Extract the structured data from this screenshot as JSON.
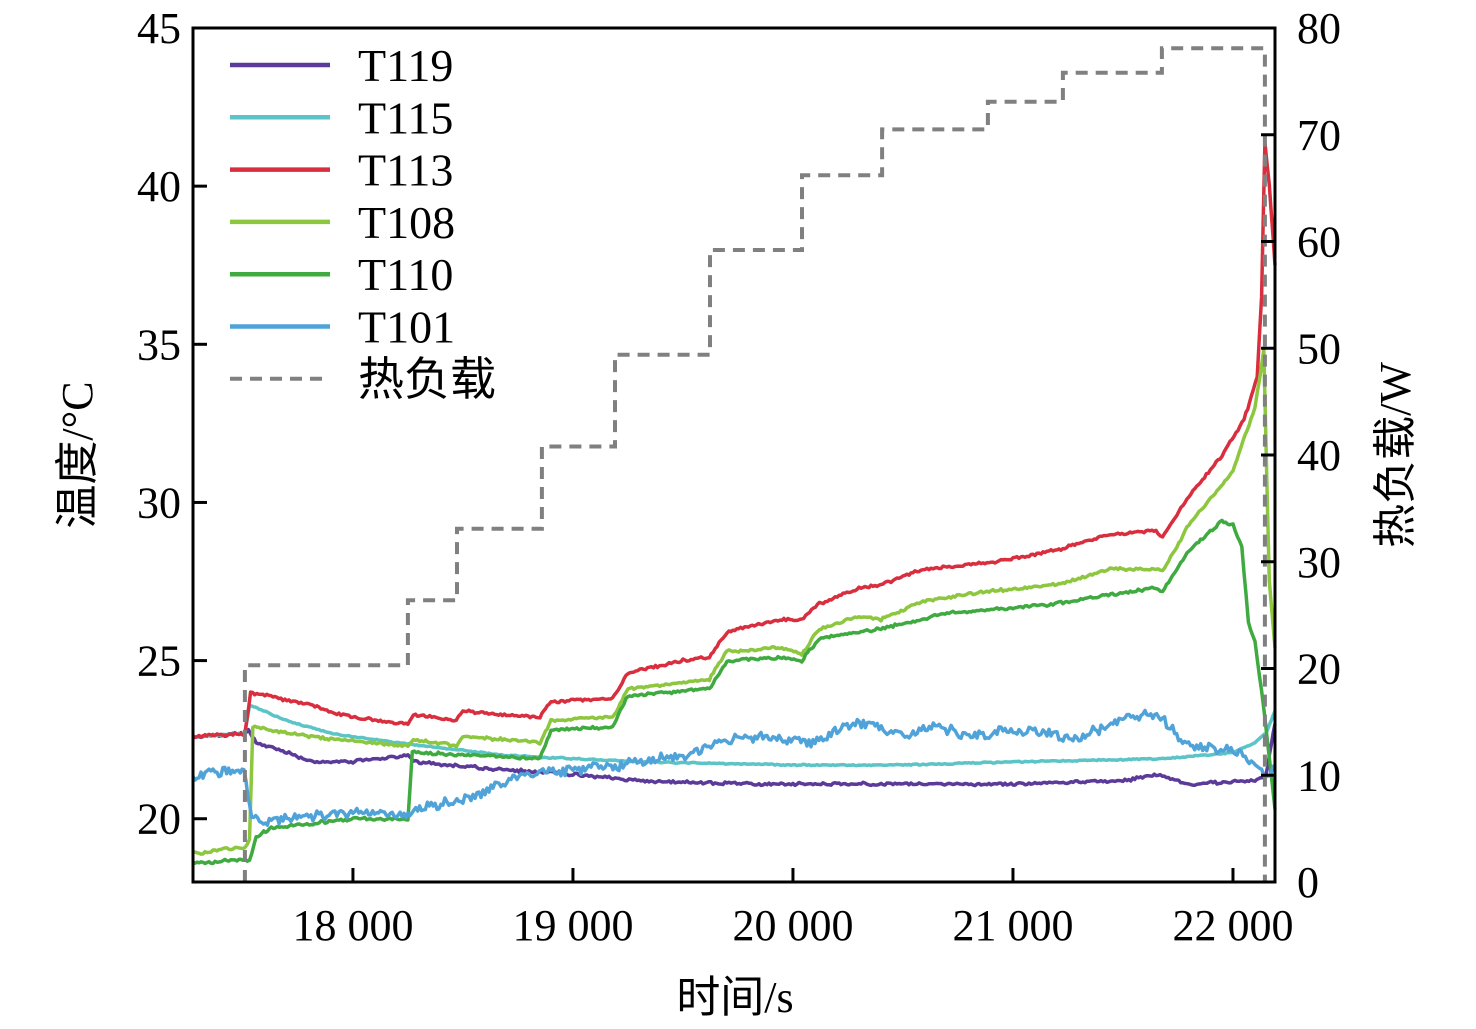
{
  "chart_data": {
    "type": "line",
    "xlabel": "时间/s",
    "ylabel": "温度/°C",
    "y2label": "热负载/W",
    "xlim": [
      17273,
      22191
    ],
    "ylim": [
      18,
      45
    ],
    "y2lim": [
      0,
      80
    ],
    "xticks": [
      18000,
      19000,
      20000,
      21000,
      22000
    ],
    "xtick_labels": [
      "18 000",
      "19 000",
      "20 000",
      "21 000",
      "22 000"
    ],
    "yticks": [
      20,
      25,
      30,
      35,
      40,
      45
    ],
    "ytick_labels": [
      "20",
      "25",
      "30",
      "35",
      "40",
      "45"
    ],
    "y2ticks": [
      0,
      10,
      20,
      30,
      40,
      50,
      60,
      70,
      80
    ],
    "y2tick_labels": [
      "0",
      "10",
      "20",
      "30",
      "40",
      "50",
      "60",
      "70",
      "80"
    ],
    "grid": false,
    "legend_position": "top-left",
    "series": [
      {
        "name": "T119",
        "color": "#5b3a99",
        "axis": "left",
        "points": [
          [
            17273,
            22.6
          ],
          [
            17509,
            22.7
          ],
          [
            17525,
            22.8
          ],
          [
            17560,
            22.4
          ],
          [
            17700,
            22.1
          ],
          [
            17800,
            21.8
          ],
          [
            18000,
            21.8
          ],
          [
            18250,
            22.0
          ],
          [
            18275,
            21.8
          ],
          [
            18600,
            21.6
          ],
          [
            19000,
            21.4
          ],
          [
            19300,
            21.2
          ],
          [
            19800,
            21.1
          ],
          [
            20500,
            21.1
          ],
          [
            21000,
            21.1
          ],
          [
            21500,
            21.2
          ],
          [
            21660,
            21.4
          ],
          [
            21800,
            21.1
          ],
          [
            22100,
            21.2
          ],
          [
            22150,
            21.4
          ],
          [
            22191,
            23.0
          ]
        ]
      },
      {
        "name": "T115",
        "color": "#5cc4c6",
        "axis": "left",
        "points": [
          [
            17273,
            22.6
          ],
          [
            17509,
            22.7
          ],
          [
            17530,
            23.6
          ],
          [
            17700,
            23.1
          ],
          [
            17900,
            22.7
          ],
          [
            18200,
            22.4
          ],
          [
            18700,
            22.0
          ],
          [
            19300,
            21.8
          ],
          [
            20000,
            21.7
          ],
          [
            20500,
            21.7
          ],
          [
            21000,
            21.8
          ],
          [
            21700,
            21.9
          ],
          [
            22000,
            22.1
          ],
          [
            22100,
            22.4
          ],
          [
            22150,
            22.7
          ],
          [
            22191,
            23.4
          ]
        ]
      },
      {
        "name": "T113",
        "color": "#d92e3e",
        "axis": "left",
        "points": [
          [
            17273,
            22.6
          ],
          [
            17509,
            22.7
          ],
          [
            17535,
            24.0
          ],
          [
            17600,
            23.9
          ],
          [
            17800,
            23.6
          ],
          [
            18000,
            23.2
          ],
          [
            18250,
            23.0
          ],
          [
            18275,
            23.3
          ],
          [
            18470,
            23.1
          ],
          [
            18500,
            23.4
          ],
          [
            18850,
            23.2
          ],
          [
            18900,
            23.7
          ],
          [
            19180,
            23.8
          ],
          [
            19250,
            24.6
          ],
          [
            19500,
            25.0
          ],
          [
            19620,
            25.1
          ],
          [
            19700,
            25.9
          ],
          [
            19950,
            26.3
          ],
          [
            20040,
            26.3
          ],
          [
            20120,
            26.8
          ],
          [
            20300,
            27.3
          ],
          [
            20400,
            27.4
          ],
          [
            20600,
            27.9
          ],
          [
            20900,
            28.1
          ],
          [
            21200,
            28.5
          ],
          [
            21450,
            29.0
          ],
          [
            21650,
            29.1
          ],
          [
            21680,
            28.9
          ],
          [
            21800,
            30.2
          ],
          [
            21950,
            31.5
          ],
          [
            22050,
            32.6
          ],
          [
            22110,
            34.0
          ],
          [
            22130,
            36.5
          ],
          [
            22145,
            41.4
          ],
          [
            22165,
            40.0
          ],
          [
            22191,
            37.5
          ]
        ]
      },
      {
        "name": "T108",
        "color": "#8dc63f",
        "axis": "left",
        "points": [
          [
            17273,
            18.9
          ],
          [
            17509,
            19.1
          ],
          [
            17530,
            19.3
          ],
          [
            17545,
            22.9
          ],
          [
            17800,
            22.6
          ],
          [
            18250,
            22.3
          ],
          [
            18275,
            22.5
          ],
          [
            18470,
            22.3
          ],
          [
            18500,
            22.6
          ],
          [
            18850,
            22.4
          ],
          [
            18900,
            23.1
          ],
          [
            19180,
            23.2
          ],
          [
            19250,
            24.1
          ],
          [
            19620,
            24.4
          ],
          [
            19700,
            25.3
          ],
          [
            19950,
            25.4
          ],
          [
            20040,
            25.2
          ],
          [
            20120,
            26.0
          ],
          [
            20300,
            26.4
          ],
          [
            20400,
            26.3
          ],
          [
            20600,
            26.9
          ],
          [
            20900,
            27.2
          ],
          [
            21200,
            27.4
          ],
          [
            21450,
            27.9
          ],
          [
            21650,
            27.9
          ],
          [
            21680,
            27.8
          ],
          [
            21800,
            29.3
          ],
          [
            22000,
            31.0
          ],
          [
            22100,
            33.0
          ],
          [
            22140,
            34.8
          ],
          [
            22165,
            27.5
          ],
          [
            22191,
            25.4
          ]
        ]
      },
      {
        "name": "T110",
        "color": "#3faa3f",
        "axis": "left",
        "points": [
          [
            17273,
            18.6
          ],
          [
            17509,
            18.7
          ],
          [
            17530,
            18.7
          ],
          [
            17560,
            19.4
          ],
          [
            17620,
            19.7
          ],
          [
            18000,
            20.0
          ],
          [
            18250,
            20.0
          ],
          [
            18270,
            22.1
          ],
          [
            18850,
            21.9
          ],
          [
            18900,
            22.8
          ],
          [
            19180,
            22.9
          ],
          [
            19250,
            23.9
          ],
          [
            19620,
            24.1
          ],
          [
            19700,
            25.0
          ],
          [
            19950,
            25.1
          ],
          [
            20040,
            25.0
          ],
          [
            20120,
            25.7
          ],
          [
            20400,
            26.0
          ],
          [
            20700,
            26.5
          ],
          [
            21200,
            26.8
          ],
          [
            21650,
            27.3
          ],
          [
            21680,
            27.2
          ],
          [
            21800,
            28.5
          ],
          [
            21950,
            29.4
          ],
          [
            22000,
            29.3
          ],
          [
            22040,
            28.6
          ],
          [
            22070,
            26.2
          ],
          [
            22100,
            25.6
          ],
          [
            22140,
            23.5
          ],
          [
            22191,
            20.3
          ]
        ]
      },
      {
        "name": "T101",
        "color": "#4fa3d9",
        "axis": "left",
        "points": [
          [
            17273,
            21.3
          ],
          [
            17400,
            21.5
          ],
          [
            17505,
            21.5
          ],
          [
            17540,
            19.9
          ],
          [
            17700,
            20.0
          ],
          [
            18000,
            20.2
          ],
          [
            18250,
            20.1
          ],
          [
            18400,
            20.5
          ],
          [
            18500,
            20.6
          ],
          [
            18700,
            21.2
          ],
          [
            18900,
            21.5
          ],
          [
            19200,
            21.7
          ],
          [
            19500,
            22.0
          ],
          [
            19700,
            22.5
          ],
          [
            19900,
            22.6
          ],
          [
            20100,
            22.4
          ],
          [
            20200,
            22.8
          ],
          [
            20320,
            23.1
          ],
          [
            20500,
            22.6
          ],
          [
            20620,
            23.0
          ],
          [
            20800,
            22.6
          ],
          [
            21000,
            22.8
          ],
          [
            21300,
            22.6
          ],
          [
            21600,
            23.3
          ],
          [
            21680,
            23.2
          ],
          [
            21780,
            22.3
          ],
          [
            22000,
            22.2
          ],
          [
            22120,
            21.6
          ],
          [
            22150,
            21.4
          ],
          [
            22191,
            21.7
          ]
        ]
      },
      {
        "name": "热负载",
        "color": "#808080",
        "axis": "right",
        "dashed": true,
        "points": [
          [
            17509,
            0
          ],
          [
            17509,
            20.3
          ],
          [
            18250,
            20.3
          ],
          [
            18250,
            26.4
          ],
          [
            18473,
            26.4
          ],
          [
            18473,
            33.1
          ],
          [
            18859,
            33.1
          ],
          [
            18859,
            40.8
          ],
          [
            19191,
            40.8
          ],
          [
            19191,
            49.4
          ],
          [
            19623,
            49.4
          ],
          [
            19623,
            59.2
          ],
          [
            20041,
            59.2
          ],
          [
            20041,
            66.2
          ],
          [
            20405,
            66.2
          ],
          [
            20405,
            70.5
          ],
          [
            20886,
            70.5
          ],
          [
            20886,
            73.1
          ],
          [
            21227,
            73.1
          ],
          [
            21227,
            75.8
          ],
          [
            21677,
            75.8
          ],
          [
            21677,
            78.1
          ],
          [
            22145,
            78.1
          ],
          [
            22145,
            0
          ]
        ]
      }
    ]
  }
}
